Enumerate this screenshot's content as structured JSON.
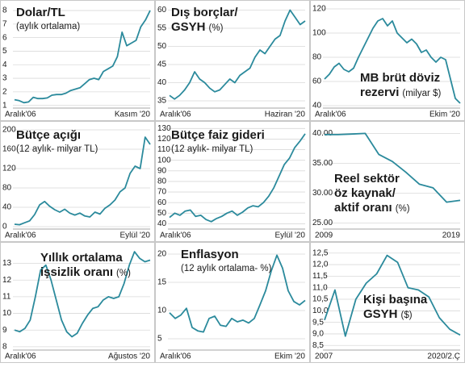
{
  "chart_data": [
    {
      "type": "line",
      "title": [
        "Dolar/TL"
      ],
      "unit": "(aylık ortalama)",
      "color": "#2b8a9c",
      "grid": true,
      "categories": [
        "Aralık'06",
        null,
        null,
        null,
        null,
        null,
        null,
        null,
        null,
        null,
        null,
        null,
        null,
        null,
        null,
        null,
        null,
        null,
        null,
        null,
        null,
        null,
        null,
        null,
        null,
        null,
        null,
        null,
        null,
        "Kasım '20"
      ],
      "values": [
        1.42,
        1.35,
        1.2,
        1.25,
        1.6,
        1.5,
        1.5,
        1.55,
        1.75,
        1.8,
        1.8,
        1.9,
        2.1,
        2.2,
        2.3,
        2.6,
        2.9,
        3.0,
        2.9,
        3.5,
        3.7,
        3.9,
        4.6,
        6.4,
        5.4,
        5.6,
        5.8,
        6.8,
        7.3,
        8.0
      ],
      "ylim": [
        0.8,
        8.3
      ],
      "yticks": [
        1,
        2,
        3,
        4,
        5,
        6,
        7,
        8
      ]
    },
    {
      "type": "line",
      "title": [
        "Dış borçlar/",
        "GSYH"
      ],
      "unit": "(%)",
      "color": "#2b8a9c",
      "grid": true,
      "categories": [
        "Aralık'06",
        null,
        null,
        null,
        null,
        null,
        null,
        null,
        null,
        null,
        null,
        null,
        null,
        null,
        null,
        null,
        null,
        null,
        null,
        null,
        null,
        null,
        null,
        null,
        null,
        null,
        null,
        "Haziran '20"
      ],
      "values": [
        36.5,
        35.5,
        36.5,
        38,
        40,
        43,
        41,
        40,
        38.5,
        37.5,
        38,
        39.5,
        41,
        40,
        42,
        43,
        44,
        47,
        49,
        48,
        50,
        52,
        53,
        57,
        60,
        58,
        56,
        57
      ],
      "ylim": [
        33,
        61
      ],
      "yticks": [
        35,
        40,
        45,
        50,
        55,
        60
      ]
    },
    {
      "type": "line",
      "title": [
        "MB brüt döviz",
        "rezervi"
      ],
      "unit": "(milyar $)",
      "color": "#2b8a9c",
      "grid": true,
      "categories": [
        "Aralık'06",
        null,
        null,
        null,
        null,
        null,
        null,
        null,
        null,
        null,
        null,
        null,
        null,
        null,
        null,
        null,
        null,
        null,
        null,
        null,
        null,
        null,
        null,
        null,
        null,
        null,
        null,
        null,
        "Ekim '20"
      ],
      "values": [
        62,
        66,
        72,
        75,
        70,
        68,
        71,
        80,
        88,
        96,
        104,
        110,
        112,
        106,
        110,
        100,
        96,
        92,
        95,
        91,
        84,
        86,
        80,
        76,
        80,
        78,
        62,
        46,
        42
      ],
      "ylim": [
        38,
        122
      ],
      "yticks": [
        40,
        60,
        80,
        100,
        120
      ]
    },
    {
      "type": "line",
      "title": [
        "Bütçe açığı"
      ],
      "unit": "(12 aylık- milyar TL)",
      "color": "#2b8a9c",
      "grid": true,
      "categories": [
        "Aralık'06",
        null,
        null,
        null,
        null,
        null,
        null,
        null,
        null,
        null,
        null,
        null,
        null,
        null,
        null,
        null,
        null,
        null,
        null,
        null,
        null,
        null,
        null,
        null,
        null,
        null,
        null,
        "Eylül '20"
      ],
      "values": [
        5,
        4,
        8,
        12,
        25,
        45,
        52,
        42,
        35,
        30,
        36,
        28,
        24,
        28,
        22,
        20,
        30,
        26,
        38,
        45,
        55,
        72,
        80,
        110,
        125,
        120,
        185,
        170
      ],
      "ylim": [
        -5,
        205
      ],
      "yticks": [
        0,
        40,
        80,
        120,
        160,
        200
      ]
    },
    {
      "type": "line",
      "title": [
        "Bütçe faiz gideri"
      ],
      "unit": "(12 aylık- milyar TL)",
      "color": "#2b8a9c",
      "grid": true,
      "categories": [
        "Aralık'06",
        null,
        null,
        null,
        null,
        null,
        null,
        null,
        null,
        null,
        null,
        null,
        null,
        null,
        null,
        null,
        null,
        null,
        null,
        null,
        null,
        null,
        null,
        null,
        null,
        null,
        "Eylül '20"
      ],
      "values": [
        46,
        50,
        48,
        52,
        53,
        47,
        48,
        44,
        42,
        45,
        47,
        50,
        52,
        48,
        51,
        55,
        57,
        56,
        60,
        66,
        74,
        85,
        96,
        102,
        112,
        118,
        125
      ],
      "ylim": [
        35,
        131
      ],
      "yticks": [
        40,
        50,
        60,
        70,
        80,
        90,
        100,
        110,
        120,
        130
      ]
    },
    {
      "type": "line",
      "title": [
        "Reel sektör",
        "öz kaynak/",
        "aktif oranı"
      ],
      "unit": "(%)",
      "color": "#2b8a9c",
      "grid": true,
      "categories": [
        "2009",
        null,
        null,
        null,
        null,
        null,
        null,
        null,
        null,
        null,
        "2019"
      ],
      "values": [
        39.8,
        39.8,
        39.9,
        40.0,
        36.5,
        35.3,
        33.5,
        31.5,
        30.9,
        28.5,
        28.8
      ],
      "ylim": [
        24,
        41
      ],
      "yticks": [
        {
          "value": 25,
          "label": "25.00"
        },
        {
          "value": 30,
          "label": "30.00"
        },
        {
          "value": 35,
          "label": "35.00"
        },
        {
          "value": 40,
          "label": "40.00"
        }
      ]
    },
    {
      "type": "line",
      "title": [
        "Yıllık ortalama",
        "işsizlik oranı"
      ],
      "unit": "(%)",
      "color": "#2b8a9c",
      "grid": true,
      "categories": [
        "Aralık'06",
        null,
        null,
        null,
        null,
        null,
        null,
        null,
        null,
        null,
        null,
        null,
        null,
        null,
        null,
        null,
        null,
        null,
        null,
        null,
        null,
        null,
        null,
        null,
        null,
        null,
        "Ağustos '20"
      ],
      "values": [
        9.0,
        8.9,
        9.1,
        9.6,
        11.0,
        12.6,
        12.9,
        12.0,
        10.8,
        9.6,
        8.9,
        8.6,
        8.8,
        9.4,
        9.9,
        10.3,
        10.4,
        10.8,
        11.0,
        10.9,
        11.0,
        11.8,
        12.9,
        13.7,
        13.3,
        13.1,
        13.2
      ],
      "ylim": [
        7.8,
        13.9
      ],
      "yticks": [
        8,
        9,
        10,
        11,
        12,
        13
      ]
    },
    {
      "type": "line",
      "title": [
        "Enflasyon"
      ],
      "unit": "(12 aylık ortalama- %)",
      "color": "#2b8a9c",
      "grid": true,
      "categories": [
        "Aralık'06",
        null,
        null,
        null,
        null,
        null,
        null,
        null,
        null,
        null,
        null,
        null,
        null,
        null,
        null,
        null,
        null,
        null,
        null,
        null,
        null,
        null,
        null,
        null,
        "Ekim '20"
      ],
      "values": [
        9.6,
        8.6,
        9.2,
        10.4,
        7.0,
        6.4,
        6.2,
        8.6,
        9.0,
        7.4,
        7.2,
        8.6,
        8.0,
        8.3,
        7.8,
        8.6,
        11.0,
        13.5,
        17.0,
        19.8,
        17.5,
        13.5,
        11.6,
        11.0,
        11.8
      ],
      "ylim": [
        3,
        21
      ],
      "yticks": [
        5,
        10,
        15,
        20
      ]
    },
    {
      "type": "line",
      "title": [
        "Kişi başına",
        "GSYH"
      ],
      "unit": "($)",
      "color": "#2b8a9c",
      "grid": true,
      "categories": [
        "2007",
        null,
        null,
        null,
        null,
        null,
        null,
        null,
        null,
        null,
        null,
        null,
        null,
        "2020/2.Ç"
      ],
      "values": [
        9.6,
        10.9,
        8.9,
        10.5,
        11.2,
        11.6,
        12.4,
        12.1,
        11.0,
        10.9,
        10.6,
        9.7,
        9.2,
        8.95
      ],
      "ylim": [
        8.3,
        12.7
      ],
      "yticks": [
        {
          "value": 8.5,
          "label": "8,5"
        },
        {
          "value": 9,
          "label": "9,0"
        },
        {
          "value": 9.5,
          "label": "9,5"
        },
        {
          "value": 10,
          "label": "10,0"
        },
        {
          "value": 10.5,
          "label": "10,5"
        },
        {
          "value": 11,
          "label": "11,0"
        },
        {
          "value": 11.5,
          "label": "11,5"
        },
        {
          "value": 12,
          "label": "12,0"
        },
        {
          "value": 12.5,
          "label": "12,5"
        }
      ]
    }
  ]
}
